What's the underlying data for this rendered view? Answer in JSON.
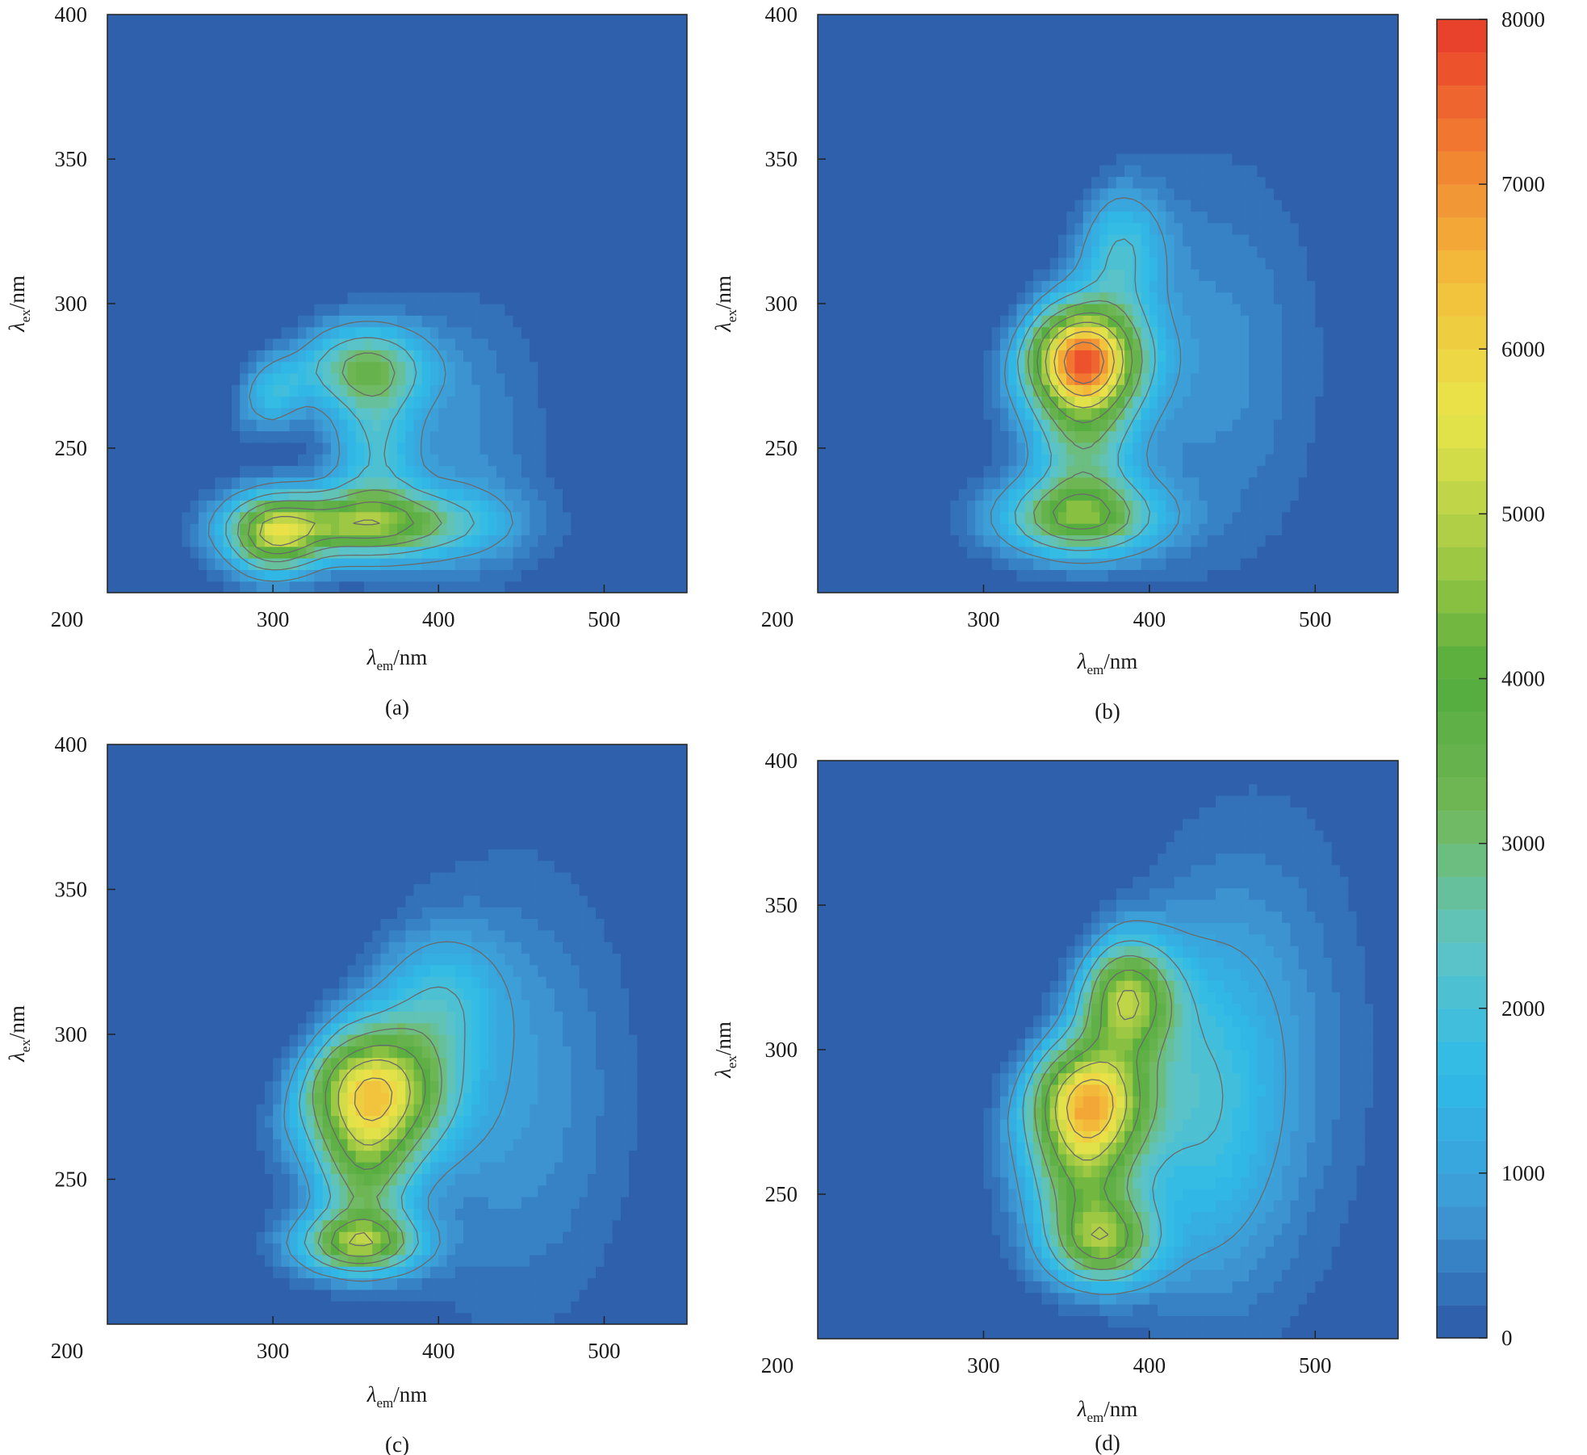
{
  "chart_data": [
    {
      "type": "heatmap",
      "caption": "(a)",
      "xlabel_symbol": "λ",
      "xlabel_sub": "em",
      "xlabel_unit": "/nm",
      "ylabel_symbol": "λ",
      "ylabel_sub": "ex",
      "ylabel_unit": "/nm",
      "xlim": [
        200,
        550
      ],
      "ylim": [
        200,
        400
      ],
      "xticks": [
        200,
        300,
        400,
        500
      ],
      "yticks": [
        250,
        300,
        350,
        400
      ],
      "peaks": [
        {
          "x": 352,
          "y": 224,
          "intensity": 4400,
          "sx": 48,
          "sy": 8
        },
        {
          "x": 300,
          "y": 219,
          "intensity": 3600,
          "sx": 18,
          "sy": 9
        },
        {
          "x": 355,
          "y": 278,
          "intensity": 3000,
          "sx": 27,
          "sy": 10
        },
        {
          "x": 292,
          "y": 272,
          "intensity": 2600,
          "sx": 16,
          "sy": 9
        },
        {
          "x": 362,
          "y": 250,
          "intensity": 1900,
          "sx": 18,
          "sy": 18
        },
        {
          "x": 420,
          "y": 250,
          "intensity": 600,
          "sx": 30,
          "sy": 35
        }
      ]
    },
    {
      "type": "heatmap",
      "caption": "(b)",
      "xlabel_symbol": "λ",
      "xlabel_sub": "em",
      "xlabel_unit": "/nm",
      "ylabel_symbol": "λ",
      "ylabel_sub": "ex",
      "ylabel_unit": "/nm",
      "xlim": [
        200,
        550
      ],
      "ylim": [
        200,
        400
      ],
      "xticks": [
        200,
        300,
        400,
        500
      ],
      "yticks": [
        250,
        300,
        350,
        400
      ],
      "peaks": [
        {
          "x": 360,
          "y": 281,
          "intensity": 7300,
          "sx": 24,
          "sy": 13
        },
        {
          "x": 358,
          "y": 226,
          "intensity": 4000,
          "sx": 32,
          "sy": 9
        },
        {
          "x": 383,
          "y": 318,
          "intensity": 1900,
          "sx": 18,
          "sy": 15
        },
        {
          "x": 360,
          "y": 252,
          "intensity": 2400,
          "sx": 22,
          "sy": 16
        },
        {
          "x": 440,
          "y": 280,
          "intensity": 700,
          "sx": 40,
          "sy": 45
        }
      ]
    },
    {
      "type": "heatmap",
      "caption": "(c)",
      "xlabel_symbol": "λ",
      "xlabel_sub": "em",
      "xlabel_unit": "/nm",
      "ylabel_symbol": "λ",
      "ylabel_sub": "ex",
      "ylabel_unit": "/nm",
      "xlim": [
        200,
        550
      ],
      "ylim": [
        200,
        400
      ],
      "xticks": [
        200,
        300,
        400,
        500
      ],
      "yticks": [
        250,
        300,
        350,
        400
      ],
      "peaks": [
        {
          "x": 360,
          "y": 280,
          "intensity": 5900,
          "sx": 30,
          "sy": 16
        },
        {
          "x": 352,
          "y": 228,
          "intensity": 4300,
          "sx": 25,
          "sy": 7
        },
        {
          "x": 355,
          "y": 250,
          "intensity": 2500,
          "sx": 20,
          "sy": 15
        },
        {
          "x": 400,
          "y": 312,
          "intensity": 1500,
          "sx": 25,
          "sy": 16
        },
        {
          "x": 445,
          "y": 280,
          "intensity": 800,
          "sx": 45,
          "sy": 50
        }
      ]
    },
    {
      "type": "heatmap",
      "caption": "(d)",
      "xlabel_symbol": "λ",
      "xlabel_sub": "em",
      "xlabel_unit": "/nm",
      "ylabel_symbol": "λ",
      "ylabel_sub": "ex",
      "ylabel_unit": "/nm",
      "xlim": [
        200,
        550
      ],
      "ylim": [
        200,
        400
      ],
      "xticks": [
        200,
        300,
        400,
        500
      ],
      "yticks": [
        250,
        300,
        350,
        400
      ],
      "peaks": [
        {
          "x": 363,
          "y": 283,
          "intensity": 5800,
          "sx": 25,
          "sy": 14
        },
        {
          "x": 386,
          "y": 318,
          "intensity": 4600,
          "sx": 20,
          "sy": 14
        },
        {
          "x": 372,
          "y": 233,
          "intensity": 3800,
          "sx": 22,
          "sy": 10
        },
        {
          "x": 360,
          "y": 256,
          "intensity": 3200,
          "sx": 24,
          "sy": 16
        },
        {
          "x": 430,
          "y": 280,
          "intensity": 1600,
          "sx": 30,
          "sy": 40
        },
        {
          "x": 470,
          "y": 300,
          "intensity": 700,
          "sx": 40,
          "sy": 55
        }
      ]
    }
  ],
  "colorbar": {
    "ticks": [
      0,
      1000,
      2000,
      3000,
      4000,
      5000,
      6000,
      7000,
      8000
    ],
    "min": 0,
    "max": 8000,
    "colors": [
      "#2c57a6",
      "#3e9bd6",
      "#2fbbe8",
      "#5fc4c4",
      "#72b857",
      "#52ab3d",
      "#a8cc45",
      "#e9e54a",
      "#f3bf3b",
      "#f27f31",
      "#e8392b"
    ]
  },
  "contour_levels": [
    1000,
    2000,
    3000,
    4000,
    5000,
    6000,
    7000
  ]
}
